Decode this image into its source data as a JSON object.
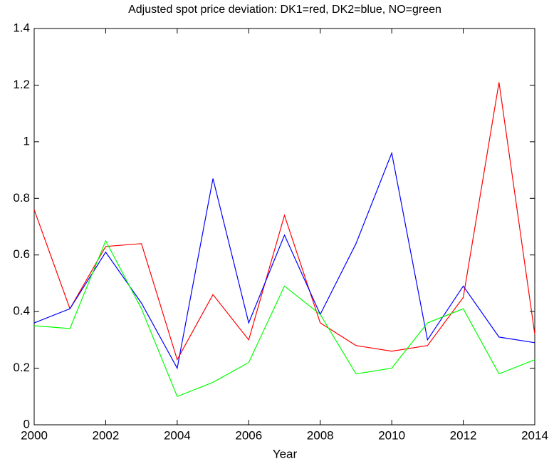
{
  "chart_data": {
    "type": "line",
    "title": "Adjusted spot price deviation: DK1=red, DK2=blue, NO=green",
    "xlabel": "Year",
    "x": [
      2000,
      2001,
      2002,
      2003,
      2004,
      2005,
      2006,
      2007,
      2008,
      2009,
      2010,
      2011,
      2012,
      2013,
      2014
    ],
    "series": [
      {
        "color": "#ff0000",
        "values": [
          0.76,
          0.41,
          0.63,
          0.64,
          0.23,
          0.46,
          0.3,
          0.74,
          0.36,
          0.28,
          0.26,
          0.28,
          0.45,
          1.21,
          0.32
        ]
      },
      {
        "color": "#0000ff",
        "values": [
          0.36,
          0.41,
          0.61,
          0.43,
          0.2,
          0.87,
          0.36,
          0.67,
          0.39,
          0.64,
          0.96,
          0.3,
          0.49,
          0.31,
          0.29
        ]
      },
      {
        "color": "#00ff00",
        "values": [
          0.35,
          0.34,
          0.65,
          0.41,
          0.1,
          0.15,
          0.22,
          0.49,
          0.39,
          0.18,
          0.2,
          0.36,
          0.41,
          0.18,
          0.23
        ]
      }
    ],
    "xlim": [
      2000,
      2014
    ],
    "xticks": [
      2000,
      2002,
      2004,
      2006,
      2008,
      2010,
      2012,
      2014
    ],
    "ylim": [
      0,
      1.4
    ],
    "yticks": [
      0,
      0.2,
      0.4,
      0.6,
      0.8,
      1,
      1.2,
      1.4
    ],
    "grid": false
  }
}
